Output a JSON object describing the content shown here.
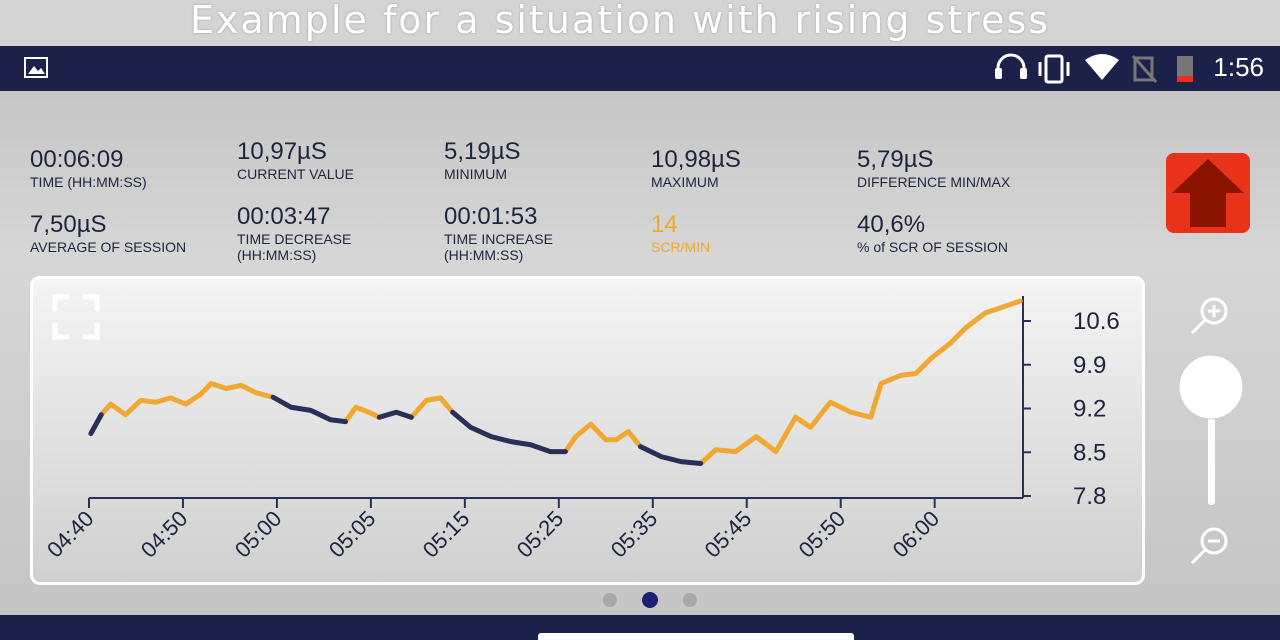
{
  "banner": "Example for a situation with rising stress",
  "status": {
    "time": "1:56"
  },
  "stats": [
    {
      "value": "00:06:09",
      "label": [
        "TIME (HH:MM:SS)"
      ]
    },
    {
      "value": "10,97µS",
      "label": [
        "CURRENT VALUE"
      ]
    },
    {
      "value": "5,19µS",
      "label": [
        "MINIMUM"
      ]
    },
    {
      "value": "10,98µS",
      "label": [
        "MAXIMUM"
      ]
    },
    {
      "value": "5,79µS",
      "label": [
        "DIFFERENCE MIN/MAX"
      ]
    },
    {
      "value": "7,50µS",
      "label": [
        "AVERAGE OF SESSION"
      ]
    },
    {
      "value": "00:03:47",
      "label": [
        "TIME DECREASE",
        "(HH:MM:SS)"
      ]
    },
    {
      "value": "00:01:53",
      "label": [
        "TIME INCREASE",
        "(HH:MM:SS)"
      ]
    },
    {
      "value": "14",
      "label": [
        "SCR/MIN"
      ]
    },
    {
      "value": "40,6%",
      "label": [
        "% of SCR OF SESSION"
      ]
    }
  ],
  "chart_data": {
    "type": "line",
    "x": [
      0.02,
      0.13,
      0.23,
      0.39,
      0.55,
      0.71,
      0.87,
      1.03,
      1.19,
      1.3,
      1.46,
      1.62,
      1.78,
      1.96,
      2.15,
      2.36,
      2.57,
      2.73,
      2.84,
      2.98,
      3.09,
      3.27,
      3.43,
      3.59,
      3.74,
      3.87,
      4.06,
      4.28,
      4.49,
      4.7,
      4.91,
      5.07,
      5.18,
      5.34,
      5.5,
      5.61,
      5.74,
      5.87,
      6.09,
      6.3,
      6.51,
      6.67,
      6.88,
      7.1,
      7.31,
      7.52,
      7.68,
      7.89,
      8.11,
      8.32,
      8.43,
      8.64,
      8.8,
      8.96,
      9.17,
      9.33,
      9.54,
      9.7,
      9.91
    ],
    "series": [
      {
        "color": "#f0a830",
        "values": [
          null,
          9.1,
          9.27,
          9.1,
          9.33,
          9.3,
          9.37,
          9.27,
          9.43,
          9.6,
          9.52,
          9.57,
          9.45,
          9.38,
          null,
          null,
          null,
          8.99,
          9.22,
          9.14,
          9.06,
          null,
          9.06,
          9.33,
          9.37,
          9.14,
          null,
          null,
          null,
          null,
          null,
          8.51,
          8.75,
          8.95,
          8.7,
          8.7,
          8.83,
          8.59,
          null,
          null,
          8.32,
          8.54,
          8.51,
          8.75,
          8.51,
          9.06,
          8.9,
          9.3,
          9.14,
          9.06,
          9.6,
          9.73,
          9.76,
          10.0,
          10.25,
          10.49,
          10.73,
          10.81,
          10.92
        ]
      },
      {
        "color": "#2a2f5a",
        "values": [
          8.8,
          9.1,
          null,
          null,
          null,
          null,
          null,
          null,
          null,
          null,
          null,
          null,
          null,
          9.38,
          9.22,
          9.17,
          9.02,
          8.99,
          null,
          null,
          9.06,
          9.14,
          9.06,
          null,
          null,
          9.14,
          8.9,
          8.75,
          8.67,
          8.62,
          8.51,
          8.51,
          null,
          null,
          null,
          null,
          null,
          8.59,
          8.43,
          8.35,
          8.32,
          null,
          null,
          null,
          null,
          null,
          null,
          null,
          null,
          null,
          null,
          null,
          null,
          null,
          null,
          null,
          null,
          null,
          null
        ]
      }
    ],
    "xlim": [
      0,
      9.94
    ],
    "xticks": [
      {
        "value": 0,
        "label": "04:40"
      },
      {
        "value": 1,
        "label": "04:50"
      },
      {
        "value": 2,
        "label": "05:00"
      },
      {
        "value": 3,
        "label": "05:05"
      },
      {
        "value": 4,
        "label": "05:15"
      },
      {
        "value": 5,
        "label": "05:25"
      },
      {
        "value": 6,
        "label": "05:35"
      },
      {
        "value": 7,
        "label": "05:45"
      },
      {
        "value": 8,
        "label": "05:50"
      },
      {
        "value": 9,
        "label": "06:00"
      }
    ],
    "ylim": [
      7.8,
      11.0
    ],
    "yticks": [
      7.8,
      8.5,
      9.2,
      9.9,
      10.6
    ]
  }
}
